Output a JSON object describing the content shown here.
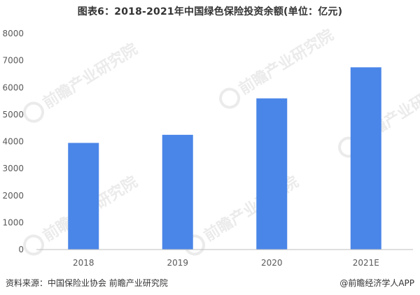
{
  "title": "图表6：2018-2021年中国绿色保险投资余额(单位：亿元)",
  "watermark_text": "前瞻产业研究院",
  "source": "资料来源：中国保险业协会 前瞻产业研究院",
  "credit": "@前瞻经济学人APP",
  "colors": {
    "bar": "#4a86e8",
    "axis": "#bfbfbf"
  },
  "chart_data": {
    "type": "bar",
    "title": "图表6：2018-2021年中国绿色保险投资余额(单位：亿元)",
    "xlabel": "",
    "ylabel": "",
    "categories": [
      "2018",
      "2019",
      "2020",
      "2021E"
    ],
    "values": [
      3950,
      4250,
      5600,
      6750
    ],
    "ylim": [
      0,
      8000
    ],
    "yticks": [
      0,
      1000,
      2000,
      3000,
      4000,
      5000,
      6000,
      7000,
      8000
    ],
    "grid": false,
    "legend": "none"
  }
}
